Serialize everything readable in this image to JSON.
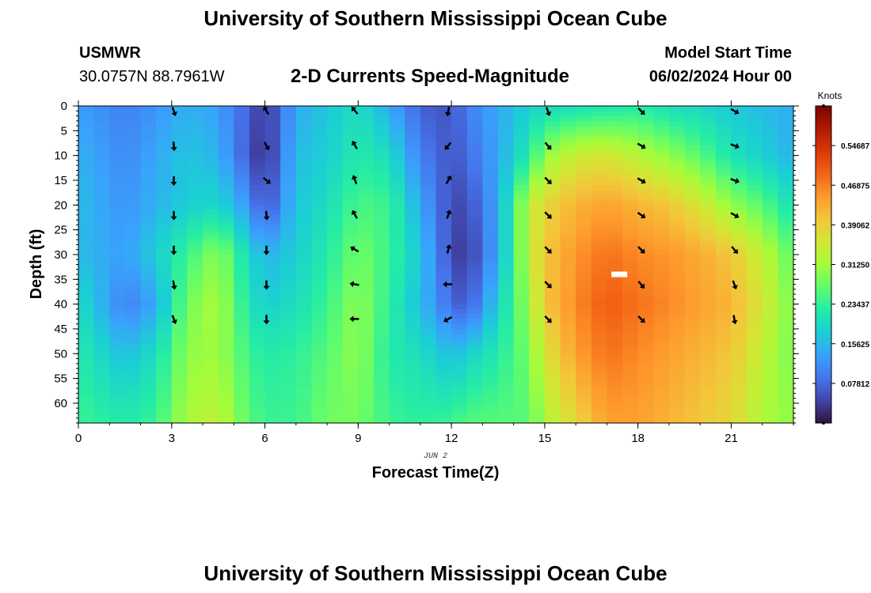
{
  "header": {
    "title": "University of Southern Mississippi Ocean Cube",
    "station_code": "USMWR",
    "coords": "30.0757N  88.7961W",
    "subtitle": "2-D Currents Speed-Magnitude",
    "model_start_label": "Model Start Time",
    "model_start_value": "06/02/2024 Hour 00"
  },
  "footer": {
    "title": "University of Southern Mississippi Ocean Cube"
  },
  "colors": {
    "arrow": "#000000",
    "marker": "#ffffff",
    "colormap": [
      "#30123b",
      "#4145ab",
      "#4675ed",
      "#39a2fc",
      "#1bcfd4",
      "#24eca6",
      "#61fc6c",
      "#a4fc3b",
      "#d1e834",
      "#f3c63a",
      "#fe9b2d",
      "#f36315",
      "#d93806",
      "#b11901",
      "#7a0402"
    ]
  },
  "chart_data": {
    "type": "heatmap",
    "title": "2-D Currents Speed-Magnitude",
    "xlabel": "Forecast Time(Z)",
    "ylabel": "Depth (ft)",
    "date_label": "JUN 2",
    "x_ticks": [
      "0",
      "3",
      "6",
      "9",
      "12",
      "15",
      "18",
      "21"
    ],
    "x_tick_values": [
      0,
      3,
      6,
      9,
      12,
      15,
      18,
      21
    ],
    "y_ticks": [
      "0",
      "5",
      "10",
      "15",
      "20",
      "25",
      "30",
      "35",
      "40",
      "45",
      "50",
      "55",
      "60"
    ],
    "y_tick_values": [
      0,
      5,
      10,
      15,
      20,
      25,
      30,
      35,
      40,
      45,
      50,
      55,
      60
    ],
    "xlim": [
      0,
      23
    ],
    "ylim": [
      0,
      64
    ],
    "colorbar": {
      "label": "Knots",
      "ticks": [
        "0.07812",
        "0.15625",
        "0.23437",
        "0.31250",
        "0.39062",
        "0.46875",
        "0.54687"
      ],
      "tick_values": [
        0.078125,
        0.15625,
        0.234375,
        0.3125,
        0.390625,
        0.46875,
        0.546875
      ],
      "range": [
        0,
        0.625
      ]
    },
    "depth_levels": [
      0,
      10,
      20,
      30,
      40,
      50,
      64
    ],
    "speed_profiles": [
      {
        "hour": 0,
        "speeds": [
          0.13,
          0.15,
          0.16,
          0.16,
          0.2,
          0.22,
          0.24
        ]
      },
      {
        "hour": 1.5,
        "speeds": [
          0.1,
          0.11,
          0.12,
          0.13,
          0.1,
          0.16,
          0.22
        ]
      },
      {
        "hour": 2.5,
        "speeds": [
          0.12,
          0.14,
          0.15,
          0.18,
          0.14,
          0.2,
          0.24
        ]
      },
      {
        "hour": 3.5,
        "speeds": [
          0.15,
          0.17,
          0.18,
          0.24,
          0.28,
          0.3,
          0.32
        ]
      },
      {
        "hour": 4.5,
        "speeds": [
          0.13,
          0.15,
          0.19,
          0.3,
          0.32,
          0.31,
          0.34
        ]
      },
      {
        "hour": 5.5,
        "speeds": [
          0.07,
          0.06,
          0.12,
          0.19,
          0.21,
          0.24,
          0.26
        ]
      },
      {
        "hour": 6.0,
        "speeds": [
          0.03,
          0.02,
          0.05,
          0.15,
          0.18,
          0.22,
          0.24
        ]
      },
      {
        "hour": 7.0,
        "speeds": [
          0.14,
          0.16,
          0.17,
          0.18,
          0.2,
          0.23,
          0.24
        ]
      },
      {
        "hour": 8.0,
        "speeds": [
          0.17,
          0.18,
          0.2,
          0.22,
          0.24,
          0.26,
          0.28
        ]
      },
      {
        "hour": 9.0,
        "speeds": [
          0.2,
          0.22,
          0.25,
          0.28,
          0.3,
          0.3,
          0.28
        ]
      },
      {
        "hour": 10.0,
        "speeds": [
          0.14,
          0.2,
          0.24,
          0.24,
          0.23,
          0.22,
          0.24
        ]
      },
      {
        "hour": 11.0,
        "speeds": [
          0.07,
          0.1,
          0.14,
          0.17,
          0.16,
          0.2,
          0.23
        ]
      },
      {
        "hour": 12.0,
        "speeds": [
          0.06,
          0.06,
          0.05,
          0.05,
          0.08,
          0.16,
          0.24
        ]
      },
      {
        "hour": 12.5,
        "speeds": [
          0.1,
          0.08,
          0.05,
          0.03,
          0.06,
          0.18,
          0.26
        ]
      },
      {
        "hour": 13.5,
        "speeds": [
          0.14,
          0.14,
          0.14,
          0.14,
          0.18,
          0.22,
          0.26
        ]
      },
      {
        "hour": 14.5,
        "speeds": [
          0.18,
          0.22,
          0.34,
          0.34,
          0.31,
          0.28,
          0.26
        ]
      },
      {
        "hour": 15.0,
        "speeds": [
          0.19,
          0.3,
          0.38,
          0.4,
          0.4,
          0.36,
          0.32
        ]
      },
      {
        "hour": 16.0,
        "speeds": [
          0.2,
          0.35,
          0.42,
          0.45,
          0.46,
          0.44,
          0.38
        ]
      },
      {
        "hour": 17.0,
        "speeds": [
          0.21,
          0.36,
          0.44,
          0.48,
          0.5,
          0.48,
          0.44
        ]
      },
      {
        "hour": 18.0,
        "speeds": [
          0.22,
          0.33,
          0.42,
          0.46,
          0.48,
          0.46,
          0.44
        ]
      },
      {
        "hour": 19.0,
        "speeds": [
          0.2,
          0.3,
          0.4,
          0.45,
          0.46,
          0.44,
          0.42
        ]
      },
      {
        "hour": 20.0,
        "speeds": [
          0.19,
          0.26,
          0.36,
          0.43,
          0.44,
          0.42,
          0.4
        ]
      },
      {
        "hour": 21.0,
        "speeds": [
          0.17,
          0.21,
          0.3,
          0.4,
          0.42,
          0.4,
          0.38
        ]
      },
      {
        "hour": 22.0,
        "speeds": [
          0.16,
          0.18,
          0.26,
          0.34,
          0.36,
          0.34,
          0.32
        ]
      },
      {
        "hour": 23.0,
        "speeds": [
          0.14,
          0.15,
          0.2,
          0.26,
          0.28,
          0.28,
          0.3
        ]
      }
    ],
    "arrow_depths": [
      1,
      8,
      15,
      22,
      29,
      36,
      43
    ],
    "vectors": [
      {
        "hour": 3.07,
        "directions_deg": [
          160,
          175,
          180,
          180,
          180,
          170,
          160
        ]
      },
      {
        "hour": 6.05,
        "directions_deg": [
          -30,
          150,
          130,
          175,
          180,
          180,
          180
        ]
      },
      {
        "hour": 8.9,
        "directions_deg": [
          -40,
          -30,
          -20,
          -30,
          -60,
          -80,
          -90
        ]
      },
      {
        "hour": 11.9,
        "directions_deg": [
          190,
          220,
          30,
          20,
          15,
          270,
          240
        ]
      },
      {
        "hour": 15.1,
        "directions_deg": [
          160,
          140,
          135,
          135,
          135,
          135,
          135
        ]
      },
      {
        "hour": 18.1,
        "directions_deg": [
          135,
          120,
          120,
          125,
          135,
          140,
          135
        ]
      },
      {
        "hour": 21.1,
        "directions_deg": [
          120,
          110,
          110,
          120,
          140,
          160,
          170
        ]
      }
    ],
    "marker": {
      "hour": 17.4,
      "depth": 34
    }
  }
}
